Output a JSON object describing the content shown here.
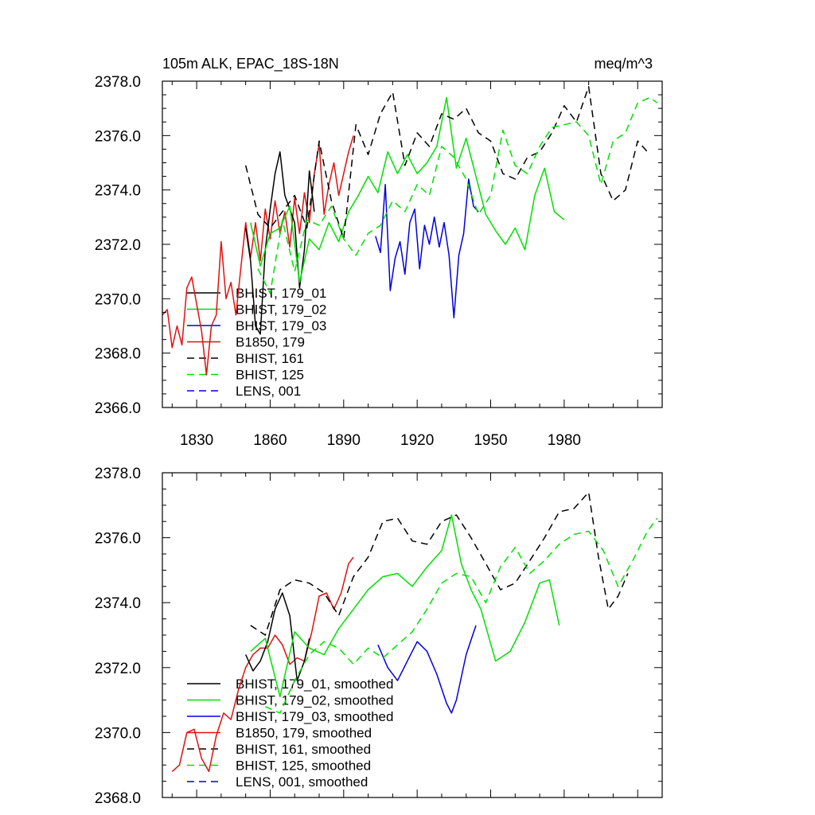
{
  "colors": {
    "black": "#000000",
    "green": "#00e000",
    "blue": "#0000dd",
    "red": "#e01010"
  },
  "chart_data": [
    {
      "type": "line",
      "title": "105m ALK, EPAC_18S-18N",
      "units": "meq/m^3",
      "xlim": [
        1816,
        2020
      ],
      "ylim": [
        2366.0,
        2378.0
      ],
      "x_ticks": [
        1830,
        1860,
        1890,
        1920,
        1950,
        1980
      ],
      "x_tick_labels": [
        "1830",
        "1860",
        "1890",
        "1920",
        "1950",
        "1980"
      ],
      "y_ticks": [
        2366.0,
        2368.0,
        2370.0,
        2372.0,
        2374.0,
        2376.0,
        2378.0
      ],
      "y_tick_labels": [
        "2366.0",
        "2368.0",
        "2370.0",
        "2372.0",
        "2374.0",
        "2376.0",
        "2378.0"
      ],
      "legend": [
        {
          "label": "BHIST, 179_01",
          "color": "black",
          "dash": false
        },
        {
          "label": "BHIST, 179_02",
          "color": "green",
          "dash": false
        },
        {
          "label": "BHIST, 179_03",
          "color": "blue",
          "dash": false
        },
        {
          "label": "B1850, 179",
          "color": "red",
          "dash": false
        },
        {
          "label": "BHIST, 161",
          "color": "black",
          "dash": true
        },
        {
          "label": "BHIST, 125",
          "color": "green",
          "dash": true
        },
        {
          "label": "LENS, 001",
          "color": "blue",
          "dash": true
        }
      ],
      "series": [
        {
          "name": "B1850, 179",
          "color": "red",
          "dash": false,
          "x": [
            1816,
            1818,
            1820,
            1822,
            1824,
            1826,
            1828,
            1830,
            1832,
            1834,
            1836,
            1838,
            1840,
            1842,
            1844,
            1846,
            1848,
            1850,
            1852,
            1854,
            1856,
            1858,
            1860,
            1862,
            1864,
            1866,
            1868,
            1870,
            1872,
            1874,
            1876,
            1878,
            1880,
            1882,
            1884,
            1886,
            1888,
            1890,
            1892,
            1894
          ],
          "values": [
            2369.4,
            2369.6,
            2368.2,
            2369.0,
            2368.3,
            2370.4,
            2370.8,
            2369.8,
            2368.8,
            2367.2,
            2369.0,
            2369.4,
            2372.1,
            2370.0,
            2370.6,
            2369.4,
            2371.1,
            2372.8,
            2371.5,
            2372.8,
            2371.4,
            2373.3,
            2372.2,
            2373.6,
            2372.4,
            2373.2,
            2371.9,
            2373.7,
            2372.4,
            2373.9,
            2372.8,
            2374.6,
            2375.7,
            2373.1,
            2374.2,
            2375.0,
            2373.8,
            2374.6,
            2375.4,
            2376.0
          ]
        },
        {
          "name": "BHIST, 179_01",
          "color": "black",
          "dash": false,
          "x": [
            1850,
            1852,
            1854,
            1856,
            1858,
            1860,
            1862,
            1864,
            1866,
            1868,
            1870,
            1872,
            1874,
            1876,
            1878
          ],
          "values": [
            2372.6,
            2371.4,
            2369.0,
            2368.7,
            2371.8,
            2373.3,
            2374.6,
            2375.4,
            2373.8,
            2373.3,
            2372.8,
            2370.4,
            2371.8,
            2374.7,
            2373.2
          ]
        },
        {
          "name": "BHIST, 179_02",
          "color": "green",
          "dash": false,
          "x": [
            1852,
            1856,
            1860,
            1864,
            1868,
            1872,
            1876,
            1880,
            1884,
            1888,
            1892,
            1896,
            1900,
            1904,
            1908,
            1912,
            1916,
            1920,
            1924,
            1928,
            1932,
            1936,
            1940,
            1944,
            1948,
            1952,
            1956,
            1960,
            1964,
            1968,
            1972,
            1976,
            1980
          ],
          "values": [
            2372.8,
            2371.2,
            2372.4,
            2372.6,
            2373.4,
            2370.6,
            2372.2,
            2371.8,
            2372.8,
            2372.1,
            2373.2,
            2373.8,
            2374.5,
            2373.9,
            2375.4,
            2374.6,
            2375.3,
            2374.6,
            2375.0,
            2375.6,
            2377.4,
            2374.8,
            2375.9,
            2374.5,
            2373.1,
            2372.5,
            2372.0,
            2372.6,
            2371.8,
            2373.8,
            2374.8,
            2373.2,
            2372.9
          ]
        },
        {
          "name": "BHIST, 179_03",
          "color": "blue",
          "dash": false,
          "x": [
            1903,
            1905,
            1907,
            1909,
            1911,
            1913,
            1915,
            1917,
            1919,
            1921,
            1923,
            1925,
            1927,
            1929,
            1931,
            1933,
            1935,
            1937,
            1939,
            1941,
            1943,
            1945
          ],
          "values": [
            2372.3,
            2371.7,
            2374.2,
            2370.3,
            2371.5,
            2372.1,
            2370.9,
            2372.8,
            2373.3,
            2371.1,
            2372.7,
            2372.0,
            2373.0,
            2371.9,
            2372.8,
            2371.6,
            2369.3,
            2371.6,
            2372.4,
            2374.4,
            2373.4,
            2373.2
          ]
        },
        {
          "name": "BHIST, 161",
          "color": "black",
          "dash": true,
          "x": [
            1850,
            1855,
            1860,
            1865,
            1870,
            1875,
            1880,
            1885,
            1890,
            1895,
            1900,
            1905,
            1910,
            1915,
            1920,
            1925,
            1930,
            1935,
            1940,
            1945,
            1950,
            1955,
            1960,
            1965,
            1970,
            1975,
            1980,
            1985,
            1990,
            1995,
            2000,
            2005,
            2010,
            2015
          ],
          "values": [
            2374.9,
            2373.1,
            2372.6,
            2373.2,
            2373.8,
            2372.6,
            2375.8,
            2373.6,
            2372.2,
            2376.4,
            2375.3,
            2376.8,
            2377.6,
            2374.9,
            2376.1,
            2375.6,
            2376.8,
            2376.6,
            2377.0,
            2376.1,
            2375.8,
            2374.6,
            2374.4,
            2375.2,
            2375.4,
            2376.1,
            2377.1,
            2376.5,
            2377.8,
            2374.6,
            2373.6,
            2374.0,
            2375.8,
            2375.3
          ]
        },
        {
          "name": "BHIST, 125",
          "color": "green",
          "dash": true,
          "x": [
            1855,
            1860,
            1865,
            1870,
            1875,
            1880,
            1885,
            1890,
            1895,
            1900,
            1905,
            1910,
            1915,
            1920,
            1925,
            1930,
            1935,
            1940,
            1945,
            1950,
            1955,
            1960,
            1965,
            1970,
            1975,
            1980,
            1985,
            1990,
            1995,
            2000,
            2005,
            2010,
            2015,
            2018
          ],
          "values": [
            2371.1,
            2370.2,
            2372.9,
            2371.0,
            2372.9,
            2372.7,
            2373.4,
            2372.2,
            2371.6,
            2372.4,
            2372.7,
            2373.6,
            2373.2,
            2374.2,
            2373.8,
            2375.6,
            2375.2,
            2374.4,
            2373.1,
            2373.8,
            2376.2,
            2374.9,
            2374.6,
            2375.6,
            2376.3,
            2376.4,
            2376.5,
            2376.0,
            2374.2,
            2375.8,
            2376.1,
            2377.2,
            2377.4,
            2377.2
          ]
        }
      ]
    },
    {
      "type": "line",
      "title": "",
      "xlim": [
        1816,
        2020
      ],
      "ylim": [
        2368.0,
        2378.0
      ],
      "y_ticks": [
        2368.0,
        2370.0,
        2372.0,
        2374.0,
        2376.0,
        2378.0
      ],
      "y_tick_labels": [
        "2368.0",
        "2370.0",
        "2372.0",
        "2374.0",
        "2376.0",
        "2378.0"
      ],
      "x_ticks": [
        1830,
        1860,
        1890,
        1920,
        1950,
        1980
      ],
      "legend": [
        {
          "label": "BHIST, 179_01, smoothed",
          "color": "black",
          "dash": false
        },
        {
          "label": "BHIST, 179_02, smoothed",
          "color": "green",
          "dash": false
        },
        {
          "label": "BHIST, 179_03, smoothed",
          "color": "blue",
          "dash": false
        },
        {
          "label": "B1850, 179, smoothed",
          "color": "red",
          "dash": false
        },
        {
          "label": "BHIST, 161, smoothed",
          "color": "black",
          "dash": true
        },
        {
          "label": "BHIST, 125, smoothed",
          "color": "green",
          "dash": true
        },
        {
          "label": "LENS, 001, smoothed",
          "color": "blue",
          "dash": true
        }
      ],
      "series": [
        {
          "name": "B1850, 179, smoothed",
          "color": "red",
          "dash": false,
          "x": [
            1820,
            1823,
            1826,
            1829,
            1832,
            1835,
            1838,
            1841,
            1844,
            1847,
            1850,
            1853,
            1856,
            1859,
            1862,
            1865,
            1868,
            1871,
            1874,
            1877,
            1880,
            1883,
            1886,
            1889,
            1892,
            1894
          ],
          "values": [
            2368.8,
            2369.0,
            2370.0,
            2370.1,
            2369.2,
            2368.8,
            2369.9,
            2370.6,
            2370.4,
            2371.3,
            2372.0,
            2372.4,
            2372.6,
            2372.6,
            2373.0,
            2372.7,
            2372.1,
            2372.3,
            2372.2,
            2373.1,
            2374.2,
            2374.3,
            2373.8,
            2374.3,
            2375.2,
            2375.4
          ]
        },
        {
          "name": "BHIST, 179_01, smoothed",
          "color": "black",
          "dash": false,
          "x": [
            1850,
            1853,
            1856,
            1859,
            1862,
            1865,
            1868,
            1871,
            1874,
            1876
          ],
          "values": [
            2372.4,
            2371.9,
            2372.2,
            2372.8,
            2373.8,
            2374.3,
            2373.6,
            2371.6,
            2372.2,
            2372.9
          ]
        },
        {
          "name": "BHIST, 179_02, smoothed",
          "color": "green",
          "dash": false,
          "x": [
            1852,
            1858,
            1864,
            1870,
            1876,
            1882,
            1888,
            1894,
            1900,
            1906,
            1912,
            1918,
            1924,
            1930,
            1934,
            1938,
            1942,
            1946,
            1952,
            1958,
            1964,
            1970,
            1974,
            1978
          ],
          "values": [
            2372.5,
            2372.9,
            2371.1,
            2373.1,
            2372.6,
            2372.4,
            2373.2,
            2373.8,
            2374.4,
            2374.8,
            2374.9,
            2374.5,
            2375.1,
            2375.6,
            2376.7,
            2375.2,
            2374.4,
            2373.8,
            2372.2,
            2372.5,
            2373.4,
            2374.6,
            2374.7,
            2373.3
          ]
        },
        {
          "name": "BHIST, 179_03, smoothed",
          "color": "blue",
          "dash": false,
          "x": [
            1904,
            1908,
            1912,
            1916,
            1920,
            1924,
            1928,
            1932,
            1934,
            1936,
            1940,
            1944
          ],
          "values": [
            2372.7,
            2372.0,
            2371.6,
            2372.2,
            2372.8,
            2372.5,
            2371.8,
            2370.9,
            2370.6,
            2371.0,
            2372.4,
            2373.3
          ]
        },
        {
          "name": "BHIST, 161, smoothed",
          "color": "black",
          "dash": true,
          "x": [
            1852,
            1858,
            1864,
            1870,
            1876,
            1882,
            1888,
            1894,
            1900,
            1906,
            1912,
            1918,
            1924,
            1930,
            1936,
            1942,
            1948,
            1954,
            1960,
            1966,
            1972,
            1978,
            1984,
            1990,
            1994,
            1998,
            2002,
            2006
          ],
          "values": [
            2373.3,
            2373.0,
            2374.4,
            2374.7,
            2374.6,
            2374.3,
            2373.6,
            2374.8,
            2375.4,
            2376.5,
            2376.6,
            2375.9,
            2375.8,
            2376.5,
            2376.7,
            2376.0,
            2375.2,
            2374.4,
            2374.6,
            2375.3,
            2376.0,
            2376.8,
            2376.9,
            2377.4,
            2375.4,
            2373.8,
            2374.2,
            2374.9
          ]
        },
        {
          "name": "BHIST, 125, smoothed",
          "color": "green",
          "dash": true,
          "x": [
            1858,
            1864,
            1870,
            1876,
            1882,
            1888,
            1894,
            1900,
            1906,
            1912,
            1918,
            1924,
            1930,
            1936,
            1942,
            1948,
            1954,
            1960,
            1966,
            1972,
            1978,
            1984,
            1990,
            1996,
            2002,
            2008,
            2014,
            2018
          ],
          "values": [
            2370.8,
            2370.6,
            2371.6,
            2372.4,
            2372.8,
            2372.6,
            2372.1,
            2372.6,
            2372.3,
            2372.7,
            2373.1,
            2373.8,
            2374.6,
            2374.9,
            2374.8,
            2374.0,
            2375.1,
            2375.7,
            2374.9,
            2375.3,
            2375.8,
            2376.1,
            2376.2,
            2375.6,
            2374.5,
            2375.3,
            2376.2,
            2376.6
          ]
        }
      ]
    }
  ]
}
